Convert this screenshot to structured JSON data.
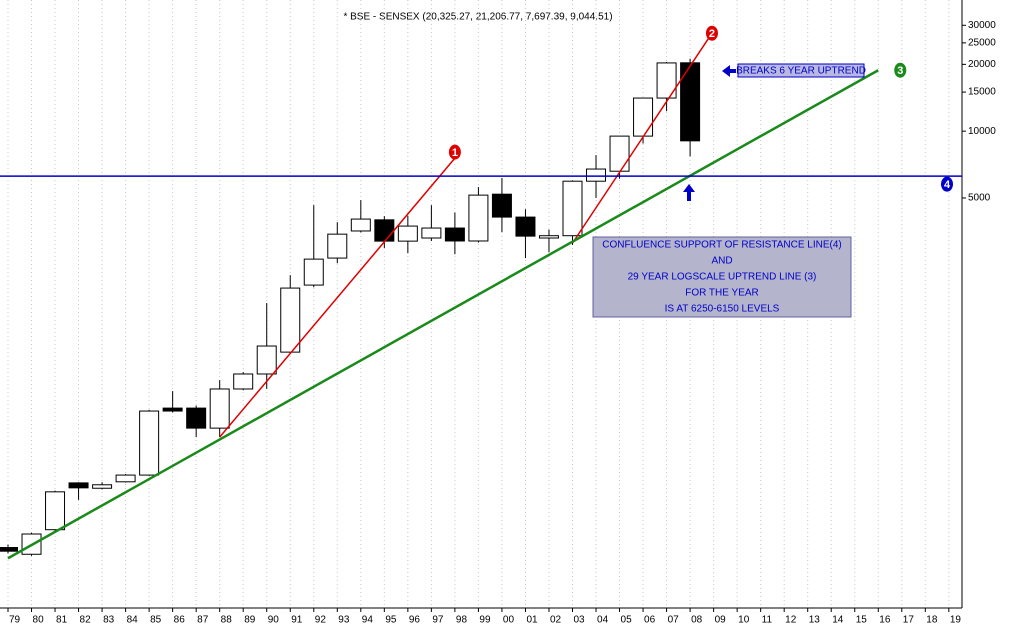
{
  "chart_data": {
    "type": "candlestick",
    "title": "* BSE - SENSEX (20,325.27, 21,206.77, 7,697.39, 9,044.51)",
    "log_scale": true,
    "grid": true,
    "x": [
      1979,
      1980,
      1981,
      1982,
      1983,
      1984,
      1985,
      1986,
      1987,
      1988,
      1989,
      1990,
      1991,
      1992,
      1993,
      1994,
      1995,
      1996,
      1997,
      1998,
      1999,
      2000,
      2001,
      2002,
      2003,
      2004,
      2005,
      2006,
      2007,
      2008
    ],
    "open": [
      133,
      124,
      160,
      260,
      246,
      263,
      282,
      565,
      565,
      459,
      689,
      805,
      1010,
      2025,
      2680,
      3550,
      3985,
      3195,
      3300,
      3660,
      3200,
      5200,
      4100,
      3300,
      3380,
      5950,
      6600,
      9500,
      14100,
      20325.27
    ],
    "high": [
      137,
      155,
      240,
      262,
      262,
      285,
      555,
      674,
      580,
      755,
      820,
      1680,
      2245,
      4640,
      3890,
      4890,
      4140,
      4160,
      4640,
      4300,
      5600,
      6150,
      4450,
      3600,
      6000,
      7800,
      9500,
      14100,
      20500,
      21206.77
    ],
    "low": [
      125,
      122,
      158,
      218,
      243,
      261,
      280,
      540,
      418,
      418,
      680,
      690,
      1000,
      1980,
      2540,
      3500,
      2975,
      2820,
      3200,
      2790,
      3150,
      3510,
      2680,
      2850,
      3070,
      5000,
      6100,
      8800,
      12300,
      7697.39
    ],
    "close": [
      128,
      153,
      237,
      247,
      255,
      282,
      548,
      548,
      459,
      689,
      805,
      1076,
      1963,
      2651,
      3435,
      4017,
      3195,
      3735,
      3660,
      3200,
      5150,
      4100,
      3365,
      3380,
      5950,
      6750,
      9500,
      14100,
      20300,
      9044.51
    ],
    "up_color": "#ffffff",
    "down_color": "#000000",
    "xlim": [
      1978.66,
      2019.56
    ],
    "xticks": [
      {
        "value": 1979,
        "label": "79"
      },
      {
        "value": 1980,
        "label": "80"
      },
      {
        "value": 1981,
        "label": "81"
      },
      {
        "value": 1982,
        "label": "82"
      },
      {
        "value": 1983,
        "label": "83"
      },
      {
        "value": 1984,
        "label": "84"
      },
      {
        "value": 1985,
        "label": "85"
      },
      {
        "value": 1986,
        "label": "86"
      },
      {
        "value": 1987,
        "label": "87"
      },
      {
        "value": 1988,
        "label": "88"
      },
      {
        "value": 1989,
        "label": "89"
      },
      {
        "value": 1990,
        "label": "90"
      },
      {
        "value": 1991,
        "label": "91"
      },
      {
        "value": 1992,
        "label": "92"
      },
      {
        "value": 1993,
        "label": "93"
      },
      {
        "value": 1994,
        "label": "94"
      },
      {
        "value": 1995,
        "label": "95"
      },
      {
        "value": 1996,
        "label": "96"
      },
      {
        "value": 1997,
        "label": "97"
      },
      {
        "value": 1998,
        "label": "98"
      },
      {
        "value": 1999,
        "label": "99"
      },
      {
        "value": 2000,
        "label": "00"
      },
      {
        "value": 2001,
        "label": "01"
      },
      {
        "value": 2002,
        "label": "02"
      },
      {
        "value": 2003,
        "label": "03"
      },
      {
        "value": 2004,
        "label": "04"
      },
      {
        "value": 2005,
        "label": "05"
      },
      {
        "value": 2006,
        "label": "06"
      },
      {
        "value": 2007,
        "label": "07"
      },
      {
        "value": 2008,
        "label": "08"
      },
      {
        "value": 2009,
        "label": "09"
      },
      {
        "value": 2010,
        "label": "10"
      },
      {
        "value": 2011,
        "label": "11"
      },
      {
        "value": 2012,
        "label": "12"
      },
      {
        "value": 2013,
        "label": "13"
      },
      {
        "value": 2014,
        "label": "14"
      },
      {
        "value": 2015,
        "label": "15"
      },
      {
        "value": 2016,
        "label": "16"
      },
      {
        "value": 2017,
        "label": "17"
      },
      {
        "value": 2018,
        "label": "18"
      },
      {
        "value": 2019,
        "label": "19"
      }
    ],
    "ylim": [
      71,
      39000
    ],
    "yticks": [
      5000,
      10000,
      15000,
      20000,
      25000,
      30000
    ],
    "trendlines": [
      {
        "label": "1",
        "color": "#e00000",
        "x": [
          1988,
          1998
        ],
        "values": [
          418,
          7560
        ]
      },
      {
        "label": "2",
        "color": "#e00000",
        "x": [
          2003,
          2008.93
        ],
        "values": [
          3130,
          27630
        ]
      },
      {
        "label": "3",
        "color": "#1a8a1a",
        "x": [
          1979,
          2016
        ],
        "values": [
          119,
          18820
        ]
      },
      {
        "label": "4",
        "color": "#0000c8",
        "x": [
          1978.66,
          2019.56
        ],
        "values": [
          6270,
          6270
        ]
      }
    ],
    "annotation": "BREAKS 6 YEAR UPTREND",
    "note_lines": [
      "CONFLUENCE SUPPORT OF RESISTANCE LINE(4)",
      "AND",
      "29 YEAR LOGSCALE UPTREND LINE (3)",
      "FOR THE YEAR",
      "IS AT 6250-6150 LEVELS"
    ]
  }
}
